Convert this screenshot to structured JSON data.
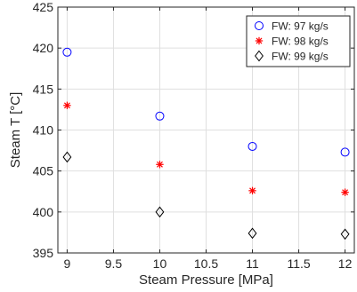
{
  "chart_data": {
    "type": "scatter",
    "xlabel": "Steam Pressure [MPa]",
    "ylabel": "Steam T [°C]",
    "xlim": [
      8.9,
      12.1
    ],
    "ylim": [
      395,
      425
    ],
    "xticks": [
      9,
      9.5,
      10,
      10.5,
      11,
      11.5,
      12
    ],
    "xtick_labels": [
      "9",
      "9.5",
      "10",
      "10.5",
      "11",
      "11.5",
      "12"
    ],
    "yticks": [
      395,
      400,
      405,
      410,
      415,
      420,
      425
    ],
    "ytick_labels": [
      "395",
      "400",
      "405",
      "410",
      "415",
      "420",
      "425"
    ],
    "grid": true,
    "legend_position": "top-right",
    "series": [
      {
        "name": "FW: 97 kg/s",
        "marker": "circle",
        "color": "#0000ff",
        "x": [
          9,
          10,
          11,
          12
        ],
        "y": [
          419.5,
          411.7,
          408.0,
          407.3
        ]
      },
      {
        "name": "FW: 98 kg/s",
        "marker": "asterisk",
        "color": "#ff0000",
        "x": [
          9,
          10,
          11,
          12
        ],
        "y": [
          413.0,
          405.8,
          402.6,
          402.4
        ]
      },
      {
        "name": "FW: 99 kg/s",
        "marker": "diamond",
        "color": "#000000",
        "x": [
          9,
          10,
          11,
          12
        ],
        "y": [
          406.7,
          400.0,
          397.4,
          397.3
        ]
      }
    ]
  }
}
